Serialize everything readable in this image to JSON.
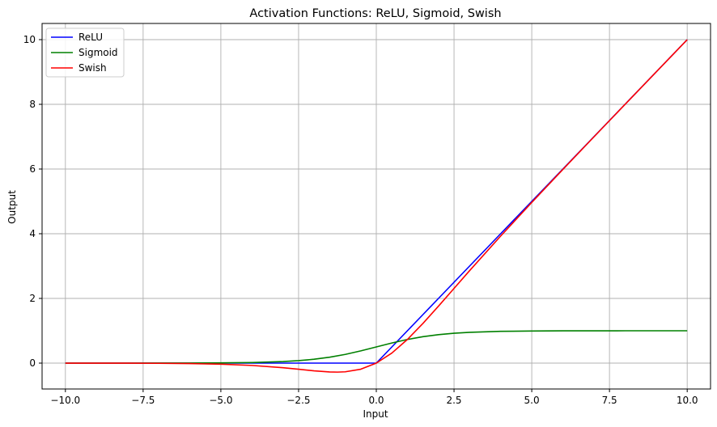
{
  "chart_data": {
    "type": "line",
    "title": "Activation Functions: ReLU, Sigmoid, Swish",
    "xlabel": "Input",
    "ylabel": "Output",
    "xlim": [
      -10.75,
      10.75
    ],
    "ylim": [
      -0.8,
      10.5
    ],
    "xticks": [
      -10.0,
      -7.5,
      -5.0,
      -2.5,
      0.0,
      2.5,
      5.0,
      7.5,
      10.0
    ],
    "xtick_labels": [
      "−10.0",
      "−7.5",
      "−5.0",
      "−2.5",
      "0.0",
      "2.5",
      "5.0",
      "7.5",
      "10.0"
    ],
    "yticks": [
      0,
      2,
      4,
      6,
      8,
      10
    ],
    "ytick_labels": [
      "0",
      "2",
      "4",
      "6",
      "8",
      "10"
    ],
    "grid": true,
    "legend_position": "top-left",
    "series": [
      {
        "name": "ReLU",
        "color": "#0000ff",
        "x": [
          -10,
          -9,
          -8,
          -7,
          -6,
          -5,
          -4,
          -3,
          -2.5,
          -2,
          -1.5,
          -1,
          -0.5,
          0,
          0.5,
          1,
          1.5,
          2,
          2.5,
          3,
          4,
          5,
          6,
          7,
          8,
          9,
          10
        ],
        "y": [
          0,
          0,
          0,
          0,
          0,
          0,
          0,
          0,
          0,
          0,
          0,
          0,
          0,
          0,
          0.5,
          1,
          1.5,
          2,
          2.5,
          3,
          4,
          5,
          6,
          7,
          8,
          9,
          10
        ]
      },
      {
        "name": "Sigmoid",
        "color": "#008000",
        "x": [
          -10,
          -9,
          -8,
          -7,
          -6,
          -5,
          -4,
          -3,
          -2.5,
          -2,
          -1.5,
          -1,
          -0.5,
          0,
          0.5,
          1,
          1.5,
          2,
          2.5,
          3,
          4,
          5,
          6,
          7,
          8,
          9,
          10
        ],
        "y": [
          4.54e-05,
          0.000123,
          0.000335,
          0.000911,
          0.00247,
          0.00669,
          0.018,
          0.0474,
          0.0759,
          0.1192,
          0.1824,
          0.2689,
          0.3775,
          0.5,
          0.6225,
          0.7311,
          0.8176,
          0.8808,
          0.9241,
          0.9526,
          0.982,
          0.9933,
          0.9975,
          0.9991,
          0.9997,
          0.9999,
          1.0
        ]
      },
      {
        "name": "Swish",
        "color": "#ff0000",
        "x": [
          -10,
          -9,
          -8,
          -7,
          -6,
          -5,
          -4,
          -3,
          -2.5,
          -2,
          -1.5,
          -1.25,
          -1,
          -0.5,
          0,
          0.5,
          1,
          1.5,
          2,
          2.5,
          3,
          4,
          5,
          6,
          7,
          8,
          9,
          10
        ],
        "y": [
          -0.000454,
          -0.00111,
          -0.00268,
          -0.00638,
          -0.01483,
          -0.03346,
          -0.07194,
          -0.1423,
          -0.1898,
          -0.2384,
          -0.2736,
          -0.2781,
          -0.2689,
          -0.1888,
          0,
          0.3112,
          0.7311,
          1.2264,
          1.7616,
          2.3103,
          2.8577,
          3.928,
          4.9665,
          5.9852,
          6.9936,
          7.9973,
          8.999,
          9.9995
        ]
      }
    ]
  }
}
